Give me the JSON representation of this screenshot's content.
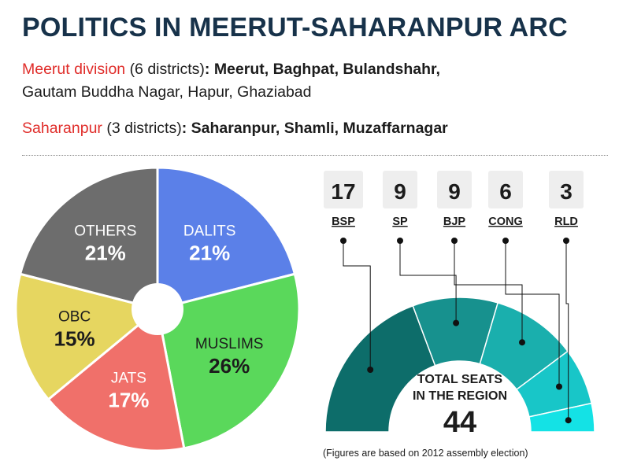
{
  "header": {
    "title": "POLITICS IN MEERUT-SAHARANPUR ARC",
    "meerut_label": "Meerut division",
    "meerut_count": "(6 districts)",
    "meerut_list_a": ": Meerut, Baghpat, Bulandshahr,",
    "meerut_list_b": "Gautam Buddha Nagar, Hapur, Ghaziabad",
    "saharanpur_label": "Saharanpur",
    "saharanpur_count": "(3 districts)",
    "saharanpur_list": ": Saharanpur, Shamli, Muzaffarnagar"
  },
  "footnote": "(Figures are based on 2012 assembly election)",
  "chart_data": [
    {
      "type": "pie",
      "categories": [
        "DALITS",
        "MUSLIMS",
        "JATS",
        "OBC",
        "OTHERS"
      ],
      "values": [
        21,
        26,
        17,
        15,
        21
      ],
      "value_labels": [
        "21%",
        "26%",
        "17%",
        "15%",
        "21%"
      ],
      "colors": [
        "#5b80e8",
        "#5ad85b",
        "#f0706a",
        "#e6d660",
        "#6d6d6d"
      ],
      "label_colors": [
        "#ffffff",
        "#1c1c1c",
        "#ffffff",
        "#1c1c1c",
        "#ffffff"
      ],
      "donut_hole": true
    },
    {
      "type": "bar",
      "subtype": "semicircle-seat-arc",
      "categories": [
        "BSP",
        "SP",
        "BJP",
        "CONG",
        "RLD"
      ],
      "values": [
        17,
        9,
        9,
        6,
        3
      ],
      "colors": [
        "#0d6d6a",
        "#17918e",
        "#1aafad",
        "#18c6c8",
        "#14e2e5"
      ],
      "center_title_line1": "TOTAL SEATS",
      "center_title_line2": "IN THE REGION",
      "total": "44"
    }
  ]
}
